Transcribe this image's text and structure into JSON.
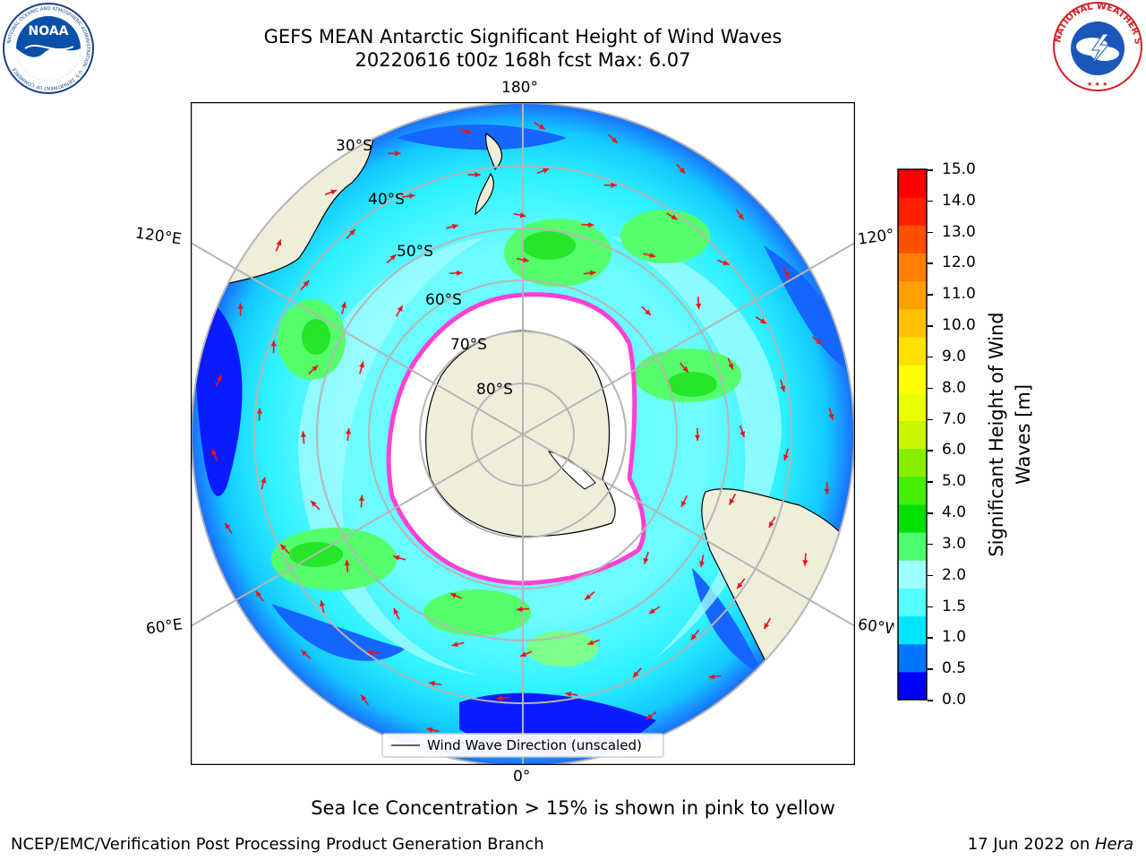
{
  "title": {
    "line1": "GEFS MEAN Antarctic Significant Height of Wind Waves",
    "line2": "20220616 t00z 168h fcst   Max: 6.07"
  },
  "map": {
    "longitude_labels": {
      "top": "180°",
      "bottom": "0°",
      "upper_left": "120°E",
      "upper_right": "120°W",
      "lower_left": "60°E",
      "lower_right": "60°W"
    },
    "latitude_labels": [
      "30°S",
      "40°S",
      "50°S",
      "60°S",
      "70°S",
      "80°S"
    ],
    "legend": "Wind Wave Direction (unscaled)",
    "colors": {
      "land": "#efeedb",
      "ice_free_ocean": "#ffffff",
      "arrow": "#e8141c",
      "grid": "#b5b5b5",
      "sea_ice_edge": "#ff3fd6"
    }
  },
  "colorbar": {
    "label": "Significant Height of Wind Waves [m]",
    "label_lines": [
      "Significant Height of Wind",
      "Waves [m]"
    ],
    "ticks": [
      "15.0",
      "14.0",
      "13.0",
      "12.0",
      "11.0",
      "10.0",
      "9.0",
      "8.0",
      "7.0",
      "6.0",
      "5.0",
      "4.0",
      "3.0",
      "2.0",
      "1.5",
      "1.0",
      "0.5",
      "0.0"
    ],
    "colors": [
      "#0000ff",
      "#0077ff",
      "#00e5ff",
      "#56ffff",
      "#a0ffff",
      "#50ff70",
      "#00e000",
      "#44ee00",
      "#88ee00",
      "#c8f500",
      "#e8ff00",
      "#ffff00",
      "#ffe000",
      "#ffc000",
      "#ffa000",
      "#ff8000",
      "#ff5000",
      "#ff2000",
      "#ff0000"
    ]
  },
  "footer": {
    "note": "Sea Ice Concentration > 15% is shown in pink to yellow",
    "credit": "NCEP/EMC/Verification Post Processing Product Generation Branch",
    "date_prefix": "17 Jun 2022 on ",
    "host": "Hera"
  },
  "logos": {
    "left": {
      "text": "NOAA",
      "ring_text": "NATIONAL OCEANIC AND ATMOSPHERIC ADMINISTRATION · U.S. DEPARTMENT OF COMMERCE"
    },
    "right": {
      "ring_text": "NATIONAL WEATHER SERVICE"
    }
  }
}
